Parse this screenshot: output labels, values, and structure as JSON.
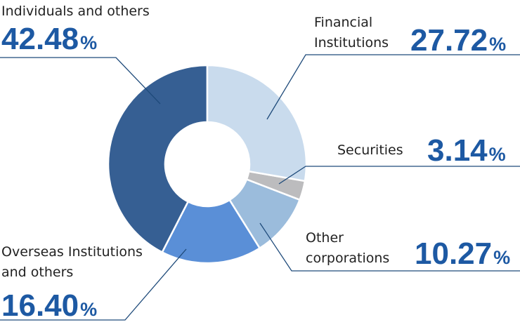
{
  "chart_data": {
    "type": "donut",
    "categories": [
      "Financial Institutions",
      "Securities",
      "Other corporations",
      "Overseas Institutions and others",
      "Individuals and others"
    ],
    "values": [
      27.72,
      3.14,
      10.27,
      16.4,
      42.48
    ],
    "value_labels": [
      "27.72",
      "3.14",
      "10.27",
      "16.40",
      "42.48"
    ],
    "unit": "%",
    "colors": [
      "#c9dbed",
      "#bcbcbe",
      "#9bbcdc",
      "#5a8fd7",
      "#365f93"
    ]
  }
}
